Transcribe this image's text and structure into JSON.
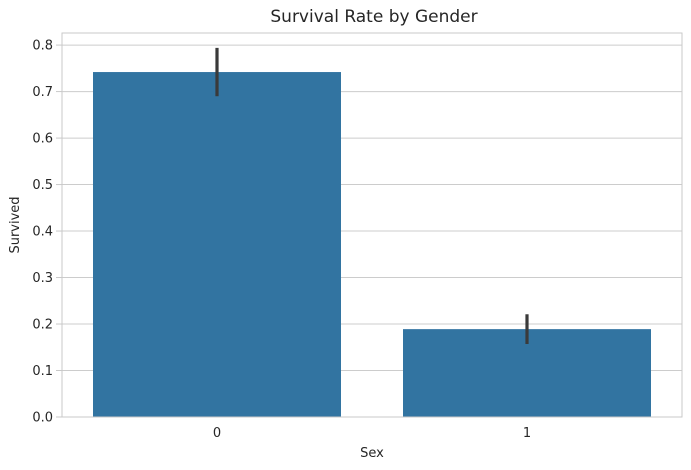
{
  "figure": {
    "background": "#ffffff"
  },
  "chart_data": {
    "type": "bar",
    "title": "Survival Rate by Gender",
    "xlabel": "Sex",
    "ylabel": "Survived",
    "categories": [
      "0",
      "1"
    ],
    "series": [
      {
        "name": "Survived",
        "values": [
          0.742,
          0.189
        ]
      }
    ],
    "error_bars": [
      {
        "low": 0.69,
        "high": 0.794
      },
      {
        "low": 0.157,
        "high": 0.221
      }
    ],
    "ylim": [
      0,
      0.826
    ],
    "yticks": [
      0.0,
      0.1,
      0.2,
      0.3,
      0.4,
      0.5,
      0.6,
      0.7,
      0.8
    ],
    "ytick_labels": [
      "0.0",
      "0.1",
      "0.2",
      "0.3",
      "0.4",
      "0.5",
      "0.6",
      "0.7",
      "0.8"
    ],
    "grid": "horizontal",
    "legend": "none",
    "colors": {
      "bar": "#3274a1",
      "error_bar": "#3a3a3a",
      "grid": "#cccccc",
      "spine": "#c9c9c9",
      "text": "#262626"
    }
  }
}
